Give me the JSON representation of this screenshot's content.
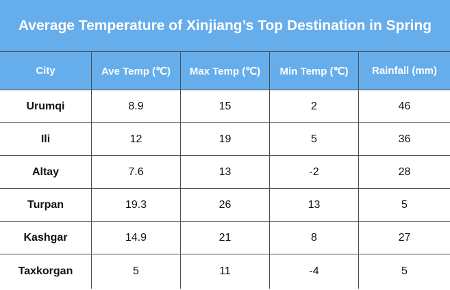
{
  "header": {
    "title": "Average Temperature of Xinjiang’s Top Destination in Spring"
  },
  "table": {
    "columns": [
      "City",
      "Ave Temp (℃)",
      "Max Temp (℃)",
      "Min Temp (℃)",
      "Rainfall (mm)"
    ],
    "rows": [
      [
        "Urumqi",
        8.9,
        15,
        2,
        46
      ],
      [
        "Ili",
        12,
        19,
        5,
        36
      ],
      [
        "Altay",
        7.6,
        13,
        -2,
        28
      ],
      [
        "Turpan",
        19.3,
        26,
        13,
        5
      ],
      [
        "Kashgar",
        14.9,
        21,
        8,
        27
      ],
      [
        "Taxkorgan",
        5,
        11,
        -4,
        5
      ]
    ]
  }
}
